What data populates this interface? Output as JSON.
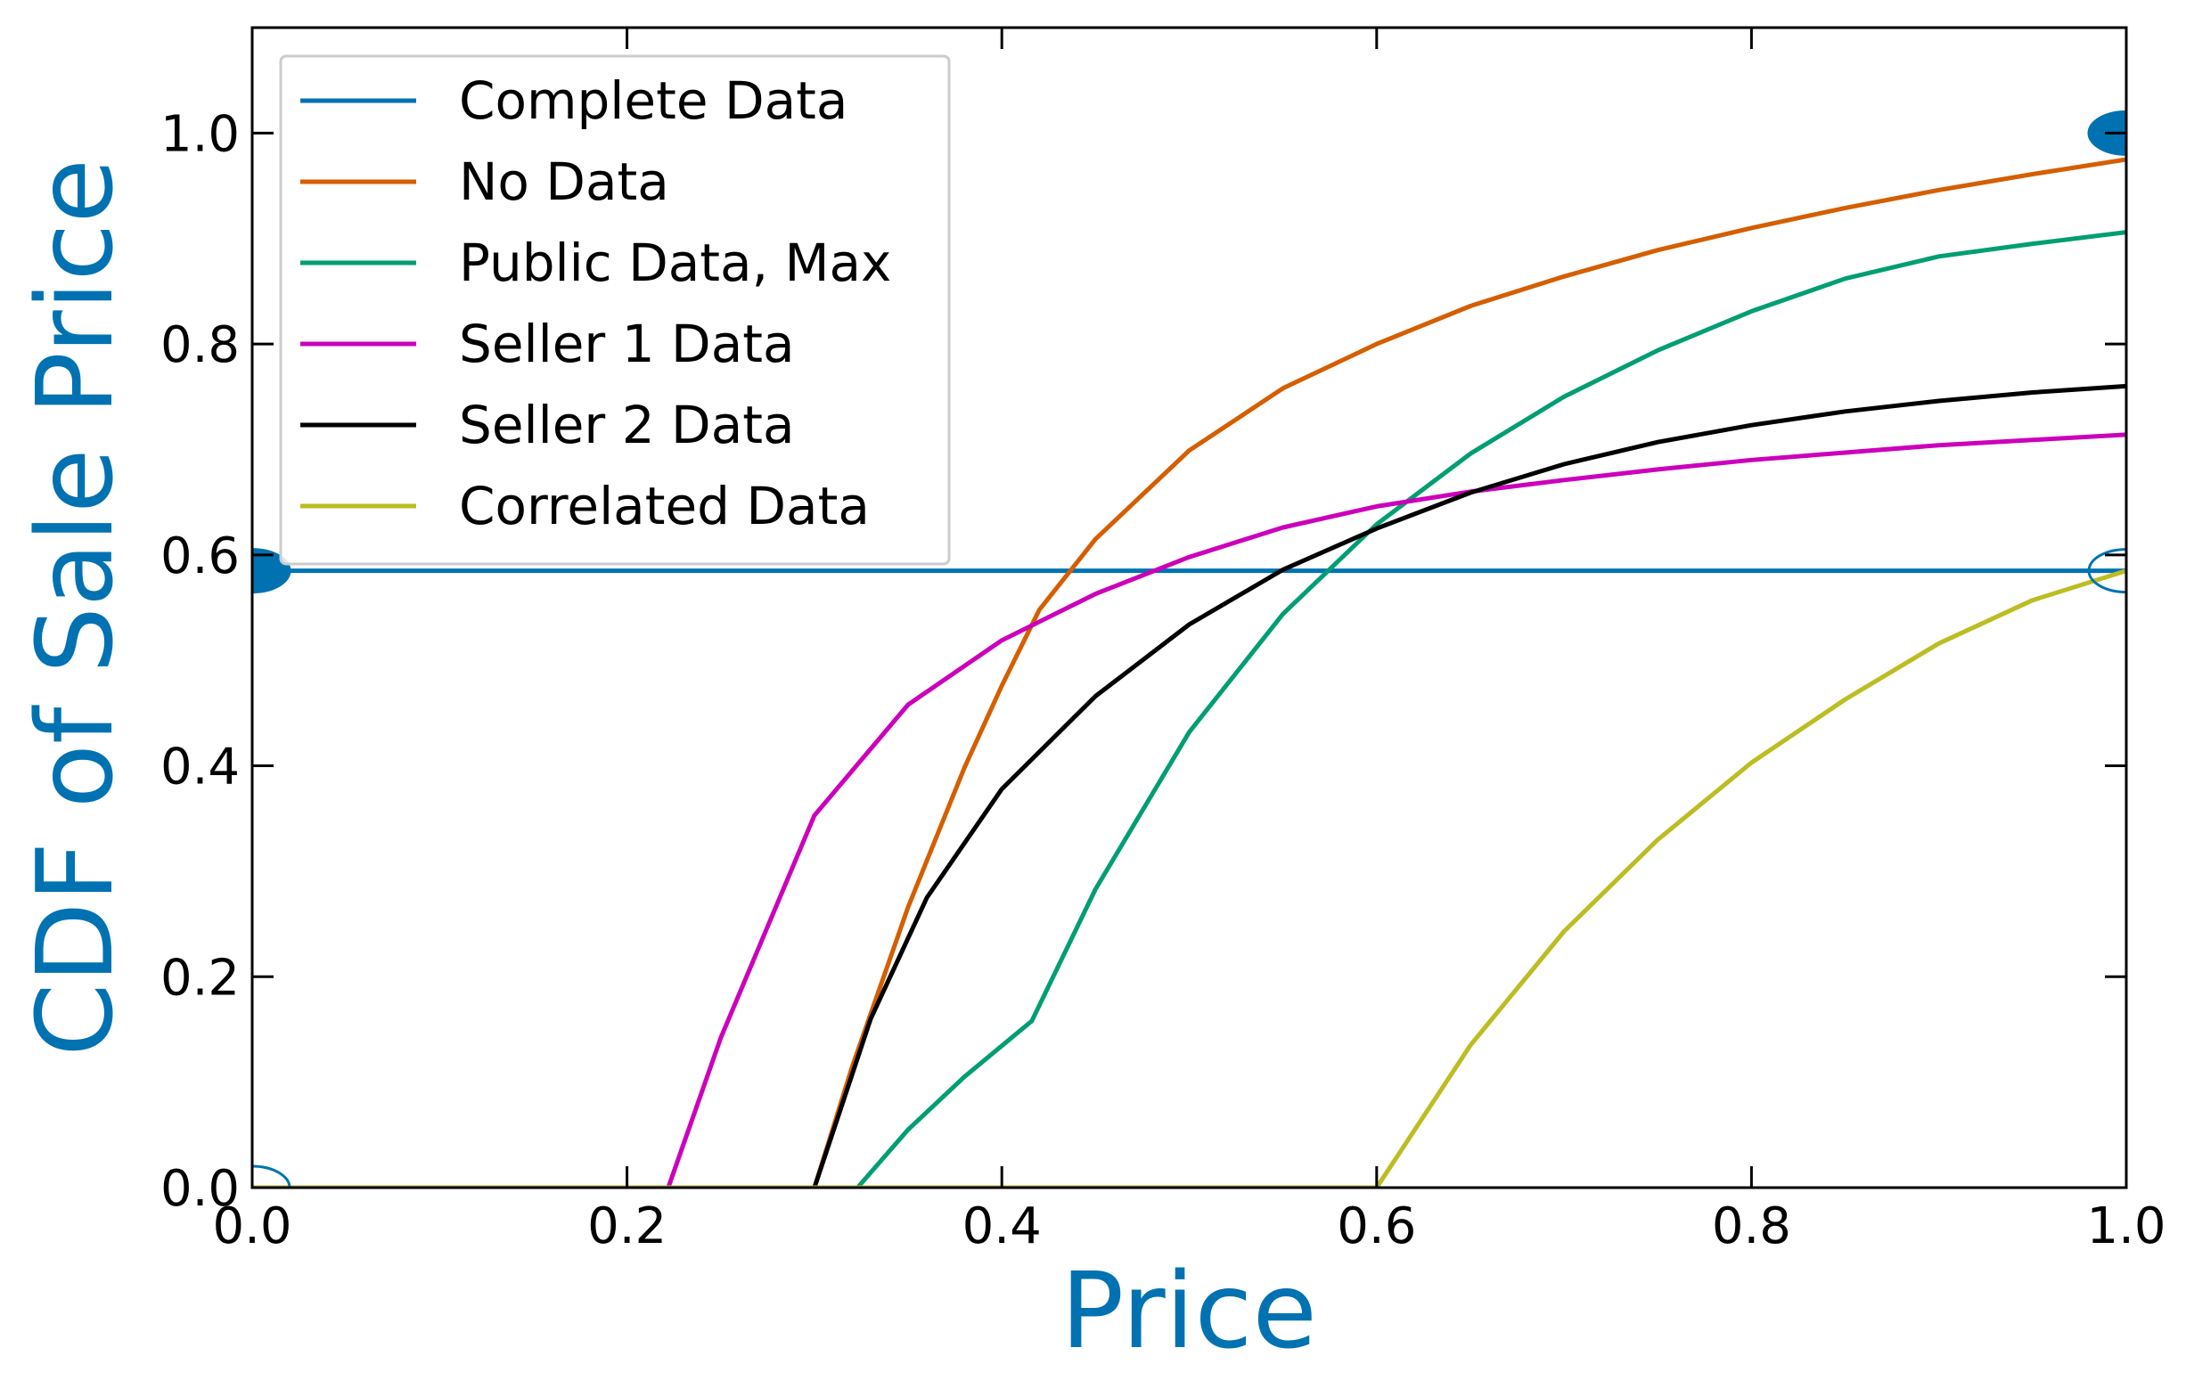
{
  "chart_data": {
    "type": "line",
    "title": "",
    "xlabel": "Price",
    "ylabel": "CDF of Sale Price",
    "label_color": "#0072B2",
    "xlim": [
      0.0,
      1.0
    ],
    "ylim": [
      0.0,
      1.1
    ],
    "x_ticks": [
      "0.0",
      "0.2",
      "0.4",
      "0.6",
      "0.8",
      "1.0"
    ],
    "y_ticks": [
      "0.0",
      "0.2",
      "0.4",
      "0.6",
      "0.8",
      "1.0"
    ],
    "grid": false,
    "legend_position": "top-left",
    "series": [
      {
        "name": "Complete Data",
        "color": "#0072B2",
        "x": [
          0.0,
          1.0
        ],
        "y": [
          0.585,
          0.585
        ]
      },
      {
        "name": "No Data",
        "color": "#D55E00",
        "x": [
          0.0,
          0.3,
          0.32,
          0.35,
          0.38,
          0.4,
          0.42,
          0.45,
          0.5,
          0.55,
          0.6,
          0.65,
          0.7,
          0.75,
          0.8,
          0.85,
          0.9,
          0.95,
          1.0
        ],
        "y": [
          0.0,
          0.0,
          0.114,
          0.266,
          0.398,
          0.476,
          0.548,
          0.615,
          0.699,
          0.758,
          0.8,
          0.836,
          0.864,
          0.889,
          0.91,
          0.929,
          0.946,
          0.961,
          0.975
        ]
      },
      {
        "name": "Public Data, Max",
        "color": "#009E73",
        "x": [
          0.0,
          0.323,
          0.35,
          0.38,
          0.416,
          0.45,
          0.5,
          0.55,
          0.6,
          0.65,
          0.7,
          0.75,
          0.8,
          0.85,
          0.9,
          0.95,
          1.0
        ],
        "y": [
          0.0,
          0.0,
          0.055,
          0.105,
          0.158,
          0.283,
          0.432,
          0.544,
          0.629,
          0.696,
          0.75,
          0.794,
          0.831,
          0.862,
          0.883,
          0.895,
          0.906
        ]
      },
      {
        "name": "Seller 1 Data",
        "color": "#CC00BB",
        "x": [
          0.0,
          0.222,
          0.25,
          0.3,
          0.35,
          0.4,
          0.45,
          0.5,
          0.55,
          0.6,
          0.65,
          0.7,
          0.75,
          0.8,
          0.85,
          0.9,
          0.95,
          1.0
        ],
        "y": [
          0.0,
          0.0,
          0.142,
          0.353,
          0.458,
          0.519,
          0.563,
          0.598,
          0.626,
          0.646,
          0.66,
          0.671,
          0.681,
          0.69,
          0.697,
          0.704,
          0.709,
          0.714
        ]
      },
      {
        "name": "Seller 2 Data",
        "color": "#000000",
        "x": [
          0.0,
          0.3,
          0.33,
          0.36,
          0.4,
          0.45,
          0.5,
          0.55,
          0.6,
          0.65,
          0.7,
          0.75,
          0.8,
          0.85,
          0.9,
          0.95,
          1.0
        ],
        "y": [
          0.0,
          0.0,
          0.16,
          0.275,
          0.378,
          0.466,
          0.534,
          0.586,
          0.625,
          0.659,
          0.686,
          0.707,
          0.723,
          0.736,
          0.746,
          0.754,
          0.76
        ]
      },
      {
        "name": "Correlated Data",
        "color": "#BCBD22",
        "x": [
          0.0,
          0.6,
          0.65,
          0.7,
          0.75,
          0.8,
          0.85,
          0.9,
          0.95,
          1.0
        ],
        "y": [
          0.0,
          0.0,
          0.135,
          0.243,
          0.33,
          0.403,
          0.463,
          0.516,
          0.557,
          0.585
        ]
      }
    ],
    "markers": [
      {
        "x": 0.0,
        "y": 0.585,
        "filled": true,
        "color": "#0072B2"
      },
      {
        "x": 0.0,
        "y": 0.0,
        "filled": false,
        "color": "#0072B2"
      },
      {
        "x": 1.0,
        "y": 1.0,
        "filled": true,
        "color": "#0072B2"
      },
      {
        "x": 1.0,
        "y": 0.585,
        "filled": false,
        "color": "#0072B2"
      }
    ]
  }
}
